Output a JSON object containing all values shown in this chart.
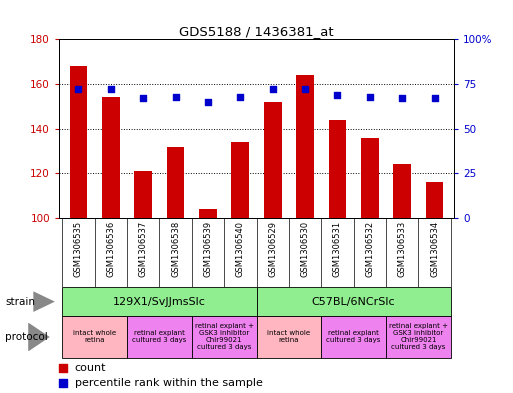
{
  "title": "GDS5188 / 1436381_at",
  "samples": [
    "GSM1306535",
    "GSM1306536",
    "GSM1306537",
    "GSM1306538",
    "GSM1306539",
    "GSM1306540",
    "GSM1306529",
    "GSM1306530",
    "GSM1306531",
    "GSM1306532",
    "GSM1306533",
    "GSM1306534"
  ],
  "counts": [
    168,
    154,
    121,
    132,
    104,
    134,
    152,
    164,
    144,
    136,
    124,
    116
  ],
  "percentiles": [
    72,
    72,
    67,
    68,
    65,
    68,
    72,
    72,
    69,
    68,
    67,
    67
  ],
  "ylim_left": [
    100,
    180
  ],
  "ylim_right": [
    0,
    100
  ],
  "yticks_left": [
    100,
    120,
    140,
    160,
    180
  ],
  "yticks_right": [
    0,
    25,
    50,
    75,
    100
  ],
  "bar_color": "#cc0000",
  "dot_color": "#0000cc",
  "bar_width": 0.55,
  "strain_groups": [
    {
      "label": "129X1/SvJJmsSlc",
      "start": 0,
      "end": 6,
      "color": "#90ee90"
    },
    {
      "label": "C57BL/6NCrSlc",
      "start": 6,
      "end": 12,
      "color": "#90ee90"
    }
  ],
  "protocol_groups": [
    {
      "label": "intact whole\nretina",
      "start": 0,
      "end": 2,
      "color": "#ffb6c1"
    },
    {
      "label": "retinal explant\ncultured 3 days",
      "start": 2,
      "end": 4,
      "color": "#ee82ee"
    },
    {
      "label": "retinal explant +\nGSK3 inhibitor\nChir99021\ncultured 3 days",
      "start": 4,
      "end": 6,
      "color": "#ee82ee"
    },
    {
      "label": "intact whole\nretina",
      "start": 6,
      "end": 8,
      "color": "#ffb6c1"
    },
    {
      "label": "retinal explant\ncultured 3 days",
      "start": 8,
      "end": 10,
      "color": "#ee82ee"
    },
    {
      "label": "retinal explant +\nGSK3 inhibitor\nChir99021\ncultured 3 days",
      "start": 10,
      "end": 12,
      "color": "#ee82ee"
    }
  ],
  "legend_count_label": "count",
  "legend_pct_label": "percentile rank within the sample",
  "bar_color_legend": "#cc0000",
  "dot_color_legend": "#0000cc",
  "grid_color": "black",
  "axis_color_left": "#cc0000",
  "axis_color_right": "#0000cc",
  "bg_color": "#d3d3d3",
  "plot_bg": "white",
  "cell_bg": "#d3d3d3"
}
